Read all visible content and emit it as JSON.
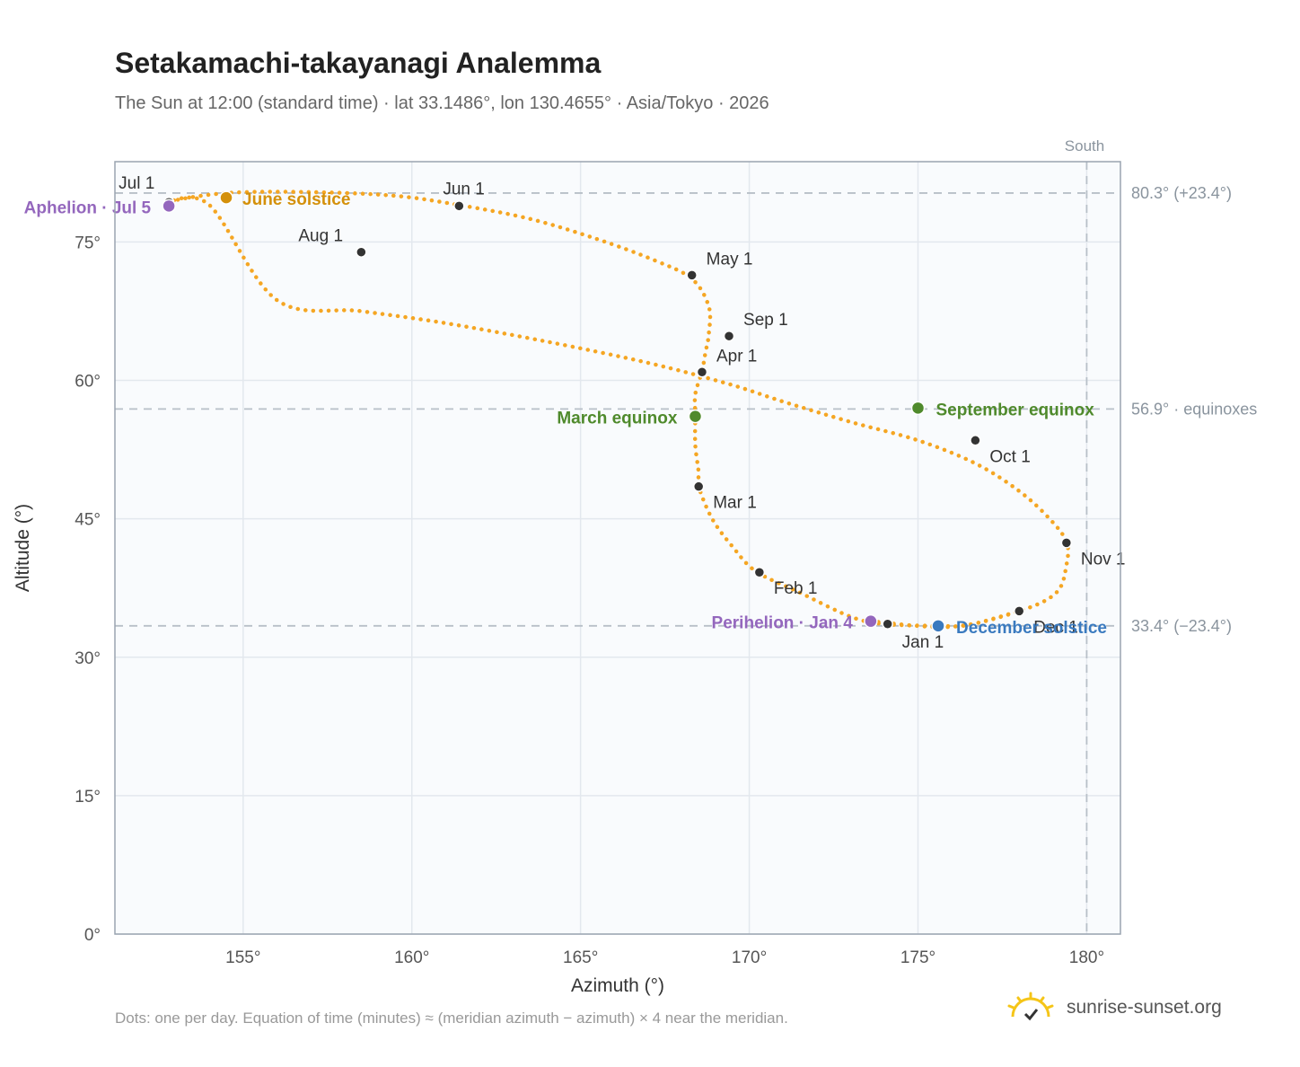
{
  "title": "Setakamachi-takayanagi Analemma",
  "subtitle": "The Sun at 12:00 (standard time) · lat 33.1486°, lon 130.4655° · Asia/Tokyo · 2026",
  "footnote": "Dots: one per day. Equation of time (minutes) ≈ (meridian azimuth − azimuth) × 4 near the meridian.",
  "brand": "sunrise-sunset.org",
  "chart_data": {
    "type": "scatter",
    "xlabel": "Azimuth (°)",
    "ylabel": "Altitude (°)",
    "xlim": [
      151.2,
      181.0
    ],
    "ylim": [
      0,
      83.7
    ],
    "xticks": [
      155,
      160,
      165,
      170,
      175,
      180
    ],
    "yticks": [
      0,
      15,
      30,
      45,
      60,
      75
    ],
    "grid": true,
    "colors": {
      "curve": "#f5a623",
      "month": "#333333",
      "june": "#d4900a",
      "december": "#3a7abf",
      "equinox": "#4f8a2c",
      "apsis": "#9467bd",
      "ref": "#b8c0c8"
    },
    "south_label": "South",
    "meridian_azimuth": 180,
    "reference_lines": [
      {
        "altitude": 80.3,
        "label": "80.3° (+23.4°)"
      },
      {
        "altitude": 56.9,
        "label": "56.9° · equinoxes"
      },
      {
        "altitude": 33.4,
        "label": "33.4° (−23.4°)"
      }
    ],
    "curve": [
      [
        173.6,
        33.9
      ],
      [
        176.0,
        33.3
      ],
      [
        178.0,
        35.0
      ],
      [
        179.1,
        37.0
      ],
      [
        179.4,
        40.0
      ],
      [
        179.4,
        42.5
      ],
      [
        178.9,
        45.0
      ],
      [
        178.0,
        48.0
      ],
      [
        176.7,
        51.0
      ],
      [
        175.0,
        53.5
      ],
      [
        173.0,
        55.5
      ],
      [
        171.0,
        57.7
      ],
      [
        169.4,
        59.6
      ],
      [
        167.0,
        61.9
      ],
      [
        164.0,
        64.2
      ],
      [
        161.0,
        66.2
      ],
      [
        158.5,
        67.5
      ],
      [
        156.0,
        68.7
      ],
      [
        154.0,
        79.0
      ],
      [
        152.8,
        79.3
      ],
      [
        154.5,
        80.3
      ],
      [
        157.0,
        80.4
      ],
      [
        159.5,
        80.0
      ],
      [
        161.4,
        79.0
      ],
      [
        163.5,
        77.5
      ],
      [
        165.5,
        75.3
      ],
      [
        167.2,
        73.0
      ],
      [
        168.3,
        71.0
      ],
      [
        168.8,
        68.0
      ],
      [
        168.8,
        65.0
      ],
      [
        168.7,
        63.0
      ],
      [
        168.6,
        61.0
      ],
      [
        168.4,
        58.5
      ],
      [
        168.4,
        56.2
      ],
      [
        168.4,
        53.0
      ],
      [
        168.5,
        50.0
      ],
      [
        168.5,
        48.5
      ],
      [
        168.9,
        45.0
      ],
      [
        169.5,
        42.0
      ],
      [
        170.2,
        39.3
      ],
      [
        171.5,
        37.0
      ],
      [
        173.0,
        34.4
      ],
      [
        174.0,
        33.6
      ],
      [
        175.6,
        33.4
      ],
      [
        176.5,
        33.5
      ],
      [
        178.0,
        35.0
      ]
    ],
    "months": [
      {
        "label": "Jan 1",
        "az": 174.1,
        "alt": 33.6
      },
      {
        "label": "Feb 1",
        "az": 170.3,
        "alt": 39.2
      },
      {
        "label": "Mar 1",
        "az": 168.5,
        "alt": 48.5
      },
      {
        "label": "Apr 1",
        "az": 168.6,
        "alt": 60.9
      },
      {
        "label": "May 1",
        "az": 168.3,
        "alt": 71.4
      },
      {
        "label": "Jun 1",
        "az": 161.4,
        "alt": 78.9
      },
      {
        "label": "Jul 1",
        "az": 152.8,
        "alt": 79.3
      },
      {
        "label": "Aug 1",
        "az": 158.5,
        "alt": 73.9
      },
      {
        "label": "Sep 1",
        "az": 169.4,
        "alt": 64.8
      },
      {
        "label": "Oct 1",
        "az": 176.7,
        "alt": 53.5
      },
      {
        "label": "Nov 1",
        "az": 179.4,
        "alt": 42.4
      },
      {
        "label": "Dec 1",
        "az": 178.0,
        "alt": 35.0
      }
    ],
    "events": [
      {
        "label": "Aphelion · Jul 5",
        "az": 152.8,
        "alt": 78.9,
        "kind": "apsis"
      },
      {
        "label": "June solstice",
        "az": 154.5,
        "alt": 79.8,
        "kind": "june"
      },
      {
        "label": "March equinox",
        "az": 168.4,
        "alt": 56.1,
        "kind": "equinox"
      },
      {
        "label": "September equinox",
        "az": 175.0,
        "alt": 57.0,
        "kind": "equinox"
      },
      {
        "label": "Perihelion · Jan 4",
        "az": 173.6,
        "alt": 33.9,
        "kind": "apsis"
      },
      {
        "label": "December solstice",
        "az": 175.6,
        "alt": 33.4,
        "kind": "december"
      }
    ]
  }
}
